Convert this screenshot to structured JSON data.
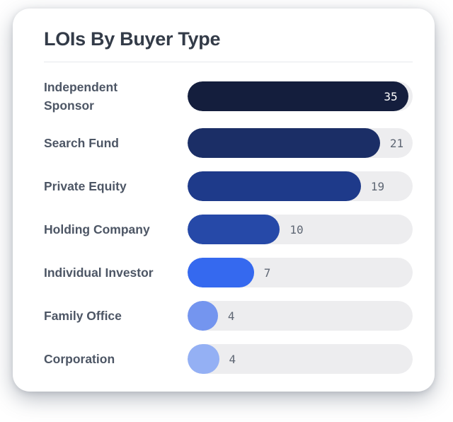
{
  "card": {
    "title": "LOIs By Buyer Type"
  },
  "chart_data": {
    "type": "bar",
    "orientation": "horizontal",
    "title": "LOIs By Buyer Type",
    "categories": [
      "Independent Sponsor",
      "Search Fund",
      "Private Equity",
      "Holding Company",
      "Individual Investor",
      "Family Office",
      "Corporation"
    ],
    "values": [
      35,
      21,
      19,
      10,
      7,
      4,
      4
    ],
    "max_value": 35,
    "axis": "none",
    "grid": false,
    "legend": "none",
    "track_color": "#ededef",
    "value_label_color": "#5f6774",
    "value_label_inside_color": "#ffffff",
    "rows": [
      {
        "label": "Independent\nSponsor",
        "value": 35,
        "bar_pct": 98,
        "color": "#141e3d",
        "value_position": "inside"
      },
      {
        "label": "Search Fund",
        "value": 21,
        "bar_pct": 85.5,
        "color": "#1b2e66",
        "value_position": "outside"
      },
      {
        "label": "Private Equity",
        "value": 19,
        "bar_pct": 77,
        "color": "#1e3a8a",
        "value_position": "outside"
      },
      {
        "label": "Holding Company",
        "value": 10,
        "bar_pct": 41,
        "color": "#2649a8",
        "value_position": "outside"
      },
      {
        "label": "Individual Investor",
        "value": 7,
        "bar_pct": 29.5,
        "color": "#3569ef",
        "value_position": "outside"
      },
      {
        "label": "Family Office",
        "value": 4,
        "bar_pct": 13.5,
        "color": "#7495ef",
        "value_position": "outside"
      },
      {
        "label": "Corporation",
        "value": 4,
        "bar_pct": 14,
        "color": "#94b0f4",
        "value_position": "outside"
      }
    ]
  }
}
